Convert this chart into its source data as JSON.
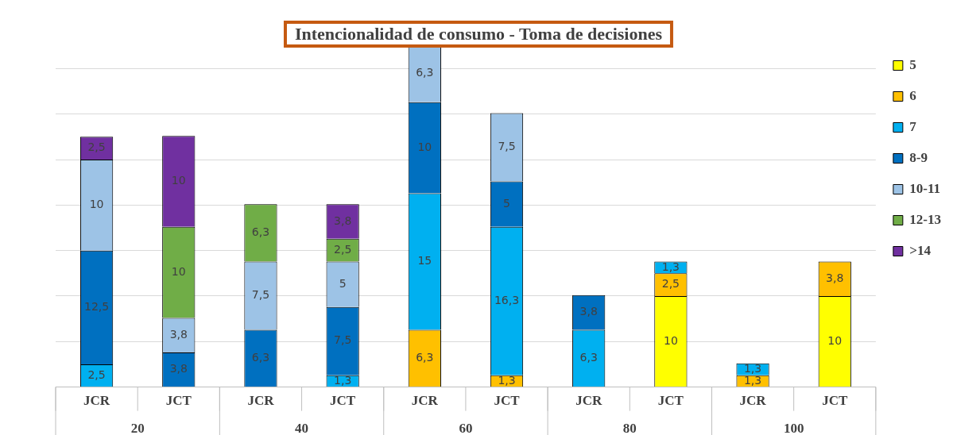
{
  "chart_data": {
    "type": "bar",
    "title": "Intencionalidad de consumo - Toma de decisiones",
    "categories": [
      "JCR",
      "JCT",
      "JCR",
      "JCT",
      "JCR",
      "JCT",
      "JCR",
      "JCT",
      "JCR",
      "JCT"
    ],
    "stacked": true,
    "ylim": [
      0,
      38
    ],
    "yticks": [
      {
        "value": 0,
        "label": null
      },
      {
        "value": 5,
        "label": null
      },
      {
        "value": 10,
        "label": null
      },
      {
        "value": 15,
        "label": null
      },
      {
        "value": 20,
        "label": null
      },
      {
        "value": 25,
        "label": null
      },
      {
        "value": 30,
        "label": null
      },
      {
        "value": 35,
        "label": null
      }
    ],
    "tick_labels": "x",
    "grid": "y",
    "legend": "top right",
    "annotations": [
      "20",
      "40",
      "60",
      "80",
      "100"
    ],
    "series": [
      {
        "name": "5",
        "color": "#ffff00",
        "values": [
          null,
          null,
          null,
          null,
          null,
          null,
          null,
          10,
          null,
          10
        ],
        "value_labels": [
          null,
          null,
          null,
          null,
          null,
          null,
          null,
          "10",
          null,
          "10"
        ]
      },
      {
        "name": "6",
        "color": "#ffc000",
        "values": [
          null,
          null,
          null,
          null,
          6.3,
          1.3,
          null,
          2.5,
          1.3,
          3.8
        ],
        "value_labels": [
          null,
          null,
          null,
          null,
          "6,3",
          "1,3",
          null,
          "2,5",
          "1,3",
          "3,8"
        ]
      },
      {
        "name": "7",
        "color": "#00b0f0",
        "values": [
          2.5,
          null,
          null,
          1.3,
          15,
          16.3,
          6.3,
          1.3,
          1.3,
          null
        ],
        "value_labels": [
          "2,5",
          null,
          null,
          "1,3",
          "15",
          "16,3",
          "6,3",
          "1,3",
          "1,3",
          null
        ]
      },
      {
        "name": "8-9",
        "color": "#0070c0",
        "values": [
          12.5,
          3.8,
          6.3,
          7.5,
          10,
          5,
          3.8,
          null,
          null,
          null
        ],
        "value_labels": [
          "12,5",
          "3,8",
          "6,3",
          "7,5",
          "10",
          "5",
          "3,8",
          null,
          null,
          null
        ]
      },
      {
        "name": "10-11",
        "color": "#9dc3e6",
        "values": [
          10,
          3.8,
          7.5,
          5,
          6.3,
          7.5,
          null,
          null,
          null,
          null
        ],
        "value_labels": [
          "10",
          "3,8",
          "7,5",
          "5",
          "6,3",
          "7,5",
          null,
          null,
          null,
          null
        ]
      },
      {
        "name": "12-13",
        "color": "#70ad47",
        "values": [
          null,
          10,
          6.3,
          2.5,
          null,
          null,
          null,
          null,
          null,
          null
        ],
        "value_labels": [
          null,
          "10",
          "6,3",
          "2,5",
          null,
          null,
          null,
          null,
          null,
          null
        ]
      },
      {
        "name": ">14",
        "color": "#7030a0",
        "values": [
          2.5,
          10,
          null,
          3.8,
          null,
          null,
          null,
          null,
          null,
          null
        ],
        "value_labels": [
          "2,5",
          "10",
          null,
          "3,8",
          null,
          null,
          null,
          null,
          null,
          null
        ]
      }
    ]
  }
}
